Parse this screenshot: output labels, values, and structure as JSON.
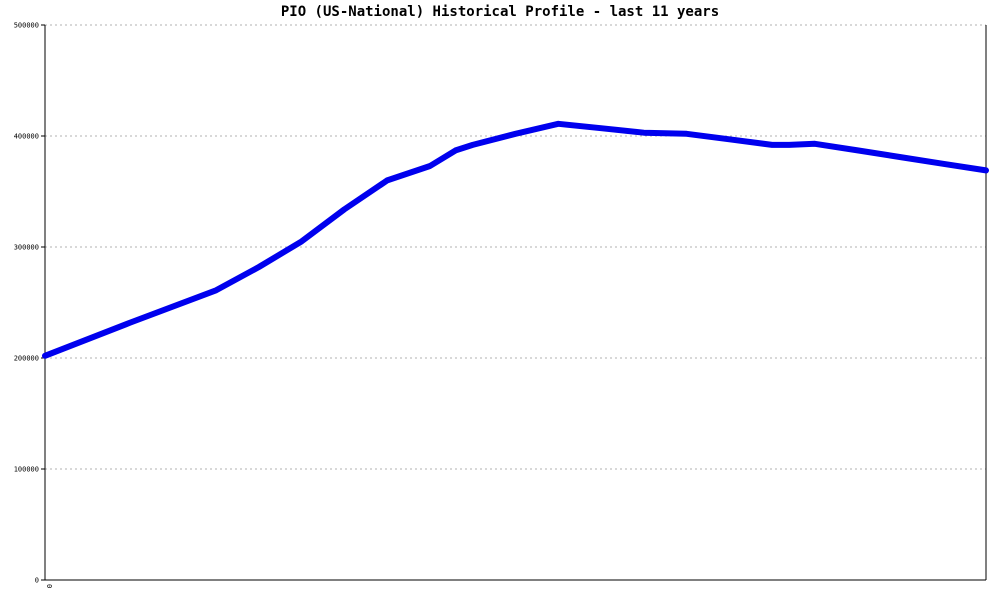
{
  "chart_data": {
    "type": "line",
    "title": "PIO (US-National) Historical Profile - last 11 years",
    "xlabel": "",
    "ylabel": "",
    "x_tick_labels": [
      "0"
    ],
    "y_ticks": [
      0,
      100000,
      200000,
      300000,
      400000,
      500000
    ],
    "y_tick_labels": [
      "0",
      "100000",
      "200000",
      "300000",
      "400000",
      "500000"
    ],
    "ylim": [
      0,
      500000
    ],
    "xlim": [
      0,
      11
    ],
    "grid": true,
    "series": [
      {
        "name": "",
        "color": "#0000ee",
        "x": [
          0,
          1,
          2,
          2.5,
          3,
          3.5,
          4,
          4.5,
          4.8,
          5,
          5.5,
          6,
          6.5,
          7,
          7.5,
          8,
          8.5,
          8.7,
          9,
          9.5,
          10,
          10.5,
          11
        ],
        "y": [
          202000,
          232000,
          261000,
          282000,
          305000,
          334000,
          360000,
          373000,
          387000,
          392000,
          402000,
          411000,
          407000,
          403000,
          402000,
          397000,
          392000,
          392000,
          393000,
          387000,
          381000,
          375000,
          369000
        ]
      }
    ]
  }
}
